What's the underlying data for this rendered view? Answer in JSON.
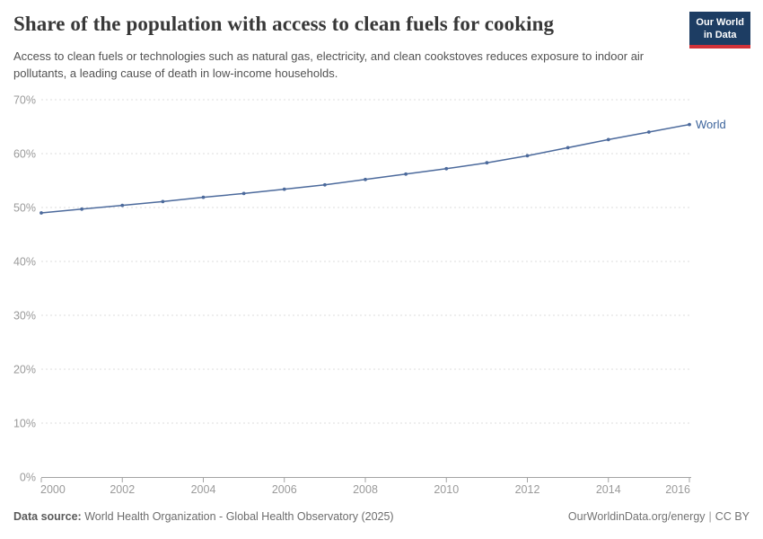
{
  "header": {
    "title": "Share of the population with access to clean fuels for cooking",
    "subtitle": "Access to clean fuels or technologies such as natural gas, electricity, and clean cookstoves reduces exposure to indoor air pollutants, a leading cause of death in low-income households.",
    "logo": {
      "line1": "Our World",
      "line2": "in Data"
    }
  },
  "chart_data": {
    "type": "line",
    "title": "Share of the population with access to clean fuels for cooking",
    "x": [
      2000,
      2001,
      2002,
      2003,
      2004,
      2005,
      2006,
      2007,
      2008,
      2009,
      2010,
      2011,
      2012,
      2013,
      2014,
      2015,
      2016
    ],
    "series": [
      {
        "name": "World",
        "color": "#4c6a9c",
        "label_color": "#3d649c",
        "values": [
          49.0,
          49.7,
          50.4,
          51.1,
          51.9,
          52.6,
          53.4,
          54.2,
          55.2,
          56.2,
          57.2,
          58.3,
          59.6,
          61.1,
          62.6,
          64.0,
          65.4
        ]
      }
    ],
    "xlabel": "",
    "ylabel": "",
    "ylim": [
      0,
      70
    ],
    "yticks": [
      0,
      10,
      20,
      30,
      40,
      50,
      60,
      70
    ],
    "ytick_suffix": "%",
    "xticks": [
      2000,
      2002,
      2004,
      2006,
      2008,
      2010,
      2012,
      2014,
      2016
    ],
    "grid": "horizontal-dashed",
    "legend_position": "end-of-line-label",
    "colors": {
      "grid": "#dcdcdc",
      "axis": "#a3a3a3",
      "tick_label": "#9a9a9a"
    }
  },
  "footer": {
    "datasource_label": "Data source:",
    "datasource_value": "World Health Organization - Global Health Observatory (2025)",
    "url": "OurWorldinData.org/energy",
    "separator": "|",
    "license": "CC BY"
  }
}
